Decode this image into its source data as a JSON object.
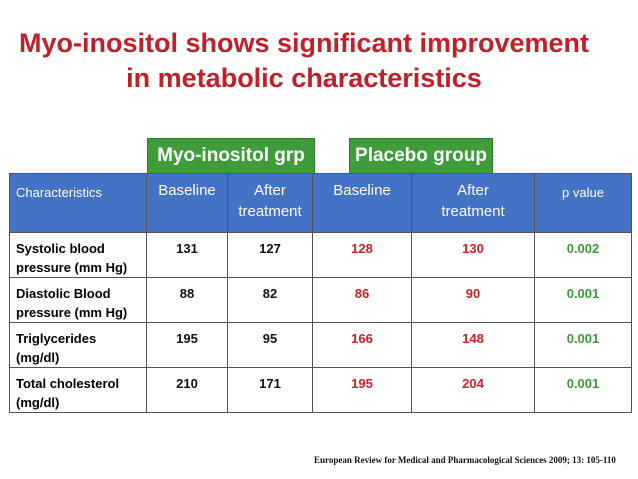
{
  "title": {
    "line1": "Myo-inositol shows significant improvement",
    "line2": "in metabolic characteristics"
  },
  "groups": {
    "myo": "Myo-inositol grp",
    "placebo": "Placebo group"
  },
  "table": {
    "headers": {
      "characteristics": "Characteristics",
      "myo_baseline": "Baseline",
      "myo_after_1": "After",
      "myo_after_2": "treatment",
      "pl_baseline": "Baseline",
      "pl_after_1": "After",
      "pl_after_2": "treatment",
      "p_value": "p value"
    },
    "rows": [
      {
        "line1": "Systolic blood",
        "line2": "pressure (mm Hg)",
        "myo_baseline": "131",
        "myo_after": "127",
        "pl_baseline": "128",
        "pl_after": "130",
        "p": "0.002"
      },
      {
        "line1": "Diastolic Blood",
        "line2": "pressure (mm Hg)",
        "myo_baseline": "88",
        "myo_after": "82",
        "pl_baseline": "86",
        "pl_after": "90",
        "p": "0.001"
      },
      {
        "line1": "Triglycerides",
        "line2": "(mg/dl)",
        "myo_baseline": "195",
        "myo_after": "95",
        "pl_baseline": "166",
        "pl_after": "148",
        "p": "0.001"
      },
      {
        "line1": "Total cholesterol",
        "line2": "(mg/dl)",
        "myo_baseline": "210",
        "myo_after": "171",
        "pl_baseline": "195",
        "pl_after": "204",
        "p": "0.001"
      }
    ]
  },
  "citation": "European Review for Medical and Pharmacological Sciences 2009; 13: 105-110",
  "colors": {
    "title": "#c0202a",
    "header": "#4472c4",
    "group_label": "#3f9c3a",
    "placebo_values": "#d01f27",
    "p_values": "#3a9b37"
  }
}
